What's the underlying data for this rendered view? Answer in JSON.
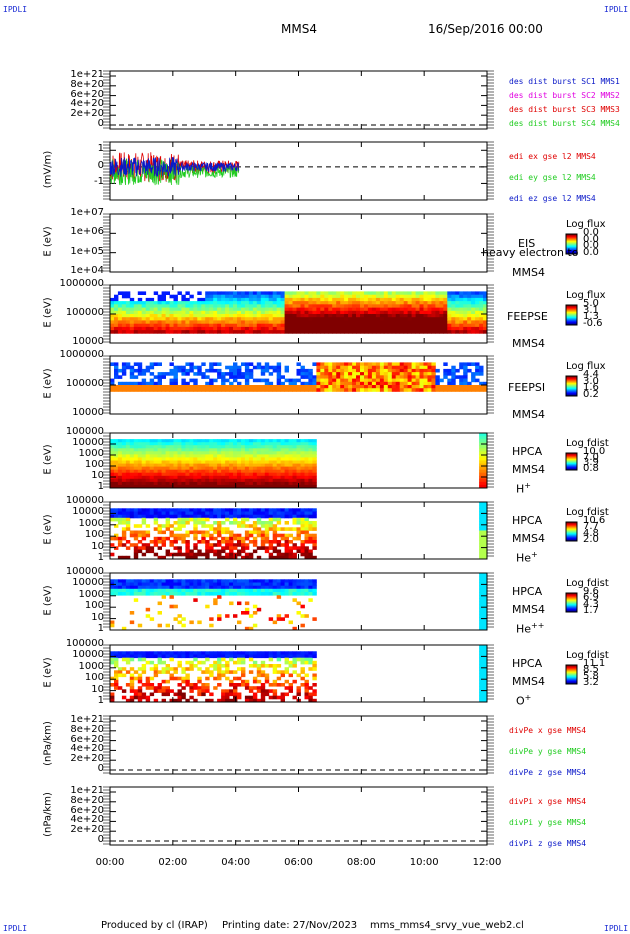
{
  "corners": {
    "tl": "IPDLI",
    "tr": "IPDLI",
    "bl": "IPDLI",
    "br": "IPDLI"
  },
  "header": {
    "spacecraft": "MMS4",
    "date": "16/Sep/2016 00:00"
  },
  "footer": {
    "produced": "Produced by cl (IRAP)",
    "printed": "Printing date: 27/Nov/2023",
    "script": "mms_mms4_srvy_vue_web2.cl"
  },
  "colors": {
    "red": "#e00000",
    "magenta": "#e000e0",
    "green": "#1fcc1f",
    "blue": "#0a18c8"
  },
  "chart_data": [
    {
      "id": "des_dist",
      "type": "line",
      "ylabel": "",
      "yticks": [
        "1e+21",
        "8e+20",
        "6e+20",
        "4e+20",
        "2e+20",
        "0"
      ],
      "legend": [
        {
          "label": "des dist burst SC1 MMS1",
          "color": "#0a18c8"
        },
        {
          "label": "des dist burst SC2 MMS2",
          "color": "#e000e0"
        },
        {
          "label": "des dist burst SC3 MMS3",
          "color": "#e00000"
        },
        {
          "label": "des dist burst SC4 MMS4",
          "color": "#1fcc1f"
        }
      ]
    },
    {
      "id": "edi",
      "type": "line",
      "ylabel": "(mV/m)",
      "ylim": [
        -2,
        1.5
      ],
      "yticks": [
        "1",
        "0",
        "-1"
      ],
      "x_end_hours": 4.1,
      "legend": [
        {
          "label": "edi ex gse l2 MMS4",
          "color": "#e00000"
        },
        {
          "label": "edi ey gse l2 MMS4",
          "color": "#1fcc1f"
        },
        {
          "label": "edi ez gse l2 MMS4",
          "color": "#0a18c8"
        }
      ]
    },
    {
      "id": "eis",
      "type": "heatmap",
      "ylabel": "E (eV)",
      "yticks": [
        "1e+07",
        "1e+06",
        "1e+05",
        "1e+04"
      ],
      "instrument": [
        "EIS",
        "MMS4"
      ],
      "overlay_text": "heavy electron to",
      "cbar_title": "Log flux",
      "cbar_values": [
        "0.0",
        "0.0",
        "0.0",
        "0.0"
      ]
    },
    {
      "id": "feepse",
      "type": "heatmap",
      "ylabel": "E (eV)",
      "yticks": [
        "1000000",
        "100000",
        "10000"
      ],
      "instrument": [
        "FEEPSE",
        "MMS4"
      ],
      "cbar_title": "Log flux",
      "cbar_values": [
        "5.0",
        "3.1",
        "1.3",
        "-0.6"
      ]
    },
    {
      "id": "feepsi",
      "type": "heatmap",
      "ylabel": "E (eV)",
      "yticks": [
        "1000000",
        "100000",
        "10000"
      ],
      "instrument": [
        "FEEPSI",
        "MMS4"
      ],
      "cbar_title": "Log flux",
      "cbar_values": [
        "4.4",
        "3.0",
        "1.6",
        "0.2"
      ]
    },
    {
      "id": "hpca_h",
      "type": "heatmap",
      "ylabel": "E (eV)",
      "yticks": [
        "100000",
        "10000",
        "1000",
        "100",
        "10",
        "1"
      ],
      "instrument": [
        "HPCA",
        "MMS4"
      ],
      "species": "H",
      "charge": "+",
      "cbar_title": "Log fdist",
      "cbar_values": [
        "10.0",
        "7.0",
        "3.9",
        "0.8"
      ]
    },
    {
      "id": "hpca_he",
      "type": "heatmap",
      "ylabel": "E (eV)",
      "yticks": [
        "100000",
        "10000",
        "1000",
        "100",
        "10",
        "1"
      ],
      "instrument": [
        "HPCA",
        "MMS4"
      ],
      "species": "He",
      "charge": "+",
      "cbar_title": "Log fdist",
      "cbar_values": [
        "10.6",
        "7.7",
        "4.8",
        "2.0"
      ]
    },
    {
      "id": "hpca_hepp",
      "type": "heatmap",
      "ylabel": "E (eV)",
      "yticks": [
        "100000",
        "10000",
        "1000",
        "100",
        "10",
        "1"
      ],
      "instrument": [
        "HPCA",
        "MMS4"
      ],
      "species": "He",
      "charge": "++",
      "cbar_title": "Log fdist",
      "cbar_values": [
        "9.6",
        "6.9",
        "4.3",
        "1.7"
      ]
    },
    {
      "id": "hpca_o",
      "type": "heatmap",
      "ylabel": "E (eV)",
      "yticks": [
        "100000",
        "10000",
        "1000",
        "100",
        "10",
        "1"
      ],
      "instrument": [
        "HPCA",
        "MMS4"
      ],
      "species": "O",
      "charge": "+",
      "cbar_title": "Log fdist",
      "cbar_values": [
        "11.1",
        "8.5",
        "5.8",
        "3.2"
      ]
    },
    {
      "id": "divpe",
      "type": "line",
      "ylabel": "(nPa/km)",
      "yticks": [
        "1e+21",
        "8e+20",
        "6e+20",
        "4e+20",
        "2e+20",
        "0"
      ],
      "legend": [
        {
          "label": "divPe x gse MMS4",
          "color": "#e00000"
        },
        {
          "label": "divPe y gse MMS4",
          "color": "#1fcc1f"
        },
        {
          "label": "divPe z gse MMS4",
          "color": "#0a18c8"
        }
      ]
    },
    {
      "id": "divpi",
      "type": "line",
      "ylabel": "(nPa/km)",
      "yticks": [
        "1e+21",
        "8e+20",
        "6e+20",
        "4e+20",
        "2e+20",
        "0"
      ],
      "legend": [
        {
          "label": "divPi x gse MMS4",
          "color": "#e00000"
        },
        {
          "label": "divPi y gse MMS4",
          "color": "#1fcc1f"
        },
        {
          "label": "divPi z gse MMS4",
          "color": "#0a18c8"
        }
      ]
    }
  ],
  "xaxis": {
    "ticks": [
      "00:00",
      "02:00",
      "04:00",
      "06:00",
      "08:00",
      "10:00",
      "12:00"
    ],
    "range_hours": [
      0,
      12
    ]
  }
}
